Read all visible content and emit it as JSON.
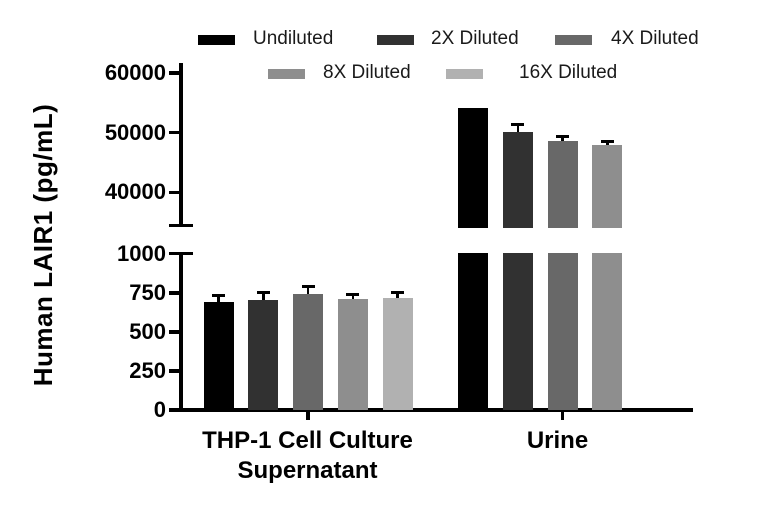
{
  "figure": {
    "y_axis_title": "Human LAIR1 (pg/mL)",
    "categories": [
      {
        "label_line1": "THP-1 Cell Culture",
        "label_line2": "Supernatant"
      },
      {
        "label_line1": "Urine",
        "label_line2": ""
      }
    ]
  },
  "legend": {
    "items": [
      {
        "label": "Undiluted",
        "color": "#000000"
      },
      {
        "label": "2X Diluted",
        "color": "#313131"
      },
      {
        "label": "4X Diluted",
        "color": "#686868"
      },
      {
        "label": "8X Diluted",
        "color": "#8e8e8e"
      },
      {
        "label": "16X Diluted",
        "color": "#b1b1b1"
      }
    ]
  },
  "chart_data": {
    "type": "bar",
    "title": "",
    "ylabel": "Human LAIR1 (pg/mL)",
    "units": "pg/mL",
    "categories": [
      "THP-1 Cell Culture Supernatant",
      "Urine"
    ],
    "series": [
      {
        "name": "Undiluted",
        "color": "#000000",
        "values": [
          692,
          54100
        ],
        "errors_plus": [
          42,
          null
        ]
      },
      {
        "name": "2X Diluted",
        "color": "#313131",
        "values": [
          704,
          50100
        ],
        "errors_plus": [
          52,
          1300
        ]
      },
      {
        "name": "4X Diluted",
        "color": "#686868",
        "values": [
          743,
          48600
        ],
        "errors_plus": [
          53,
          700
        ]
      },
      {
        "name": "8X Diluted",
        "color": "#8e8e8e",
        "values": [
          711,
          48000
        ],
        "errors_plus": [
          34,
          500
        ]
      },
      {
        "name": "16X Diluted",
        "color": "#b1b1b1",
        "values": [
          719,
          null
        ],
        "errors_plus": [
          34,
          null
        ]
      }
    ],
    "axis": {
      "broken": true,
      "lower_segment": {
        "range": [
          0,
          1000
        ],
        "ticks": [
          1000,
          750,
          500,
          250,
          0
        ]
      },
      "upper_segment": {
        "range": [
          40000,
          60000
        ],
        "ticks": [
          60000,
          50000,
          40000
        ]
      },
      "grid": false
    },
    "legend_position": "top",
    "error_bars": "upper only, black caps"
  }
}
